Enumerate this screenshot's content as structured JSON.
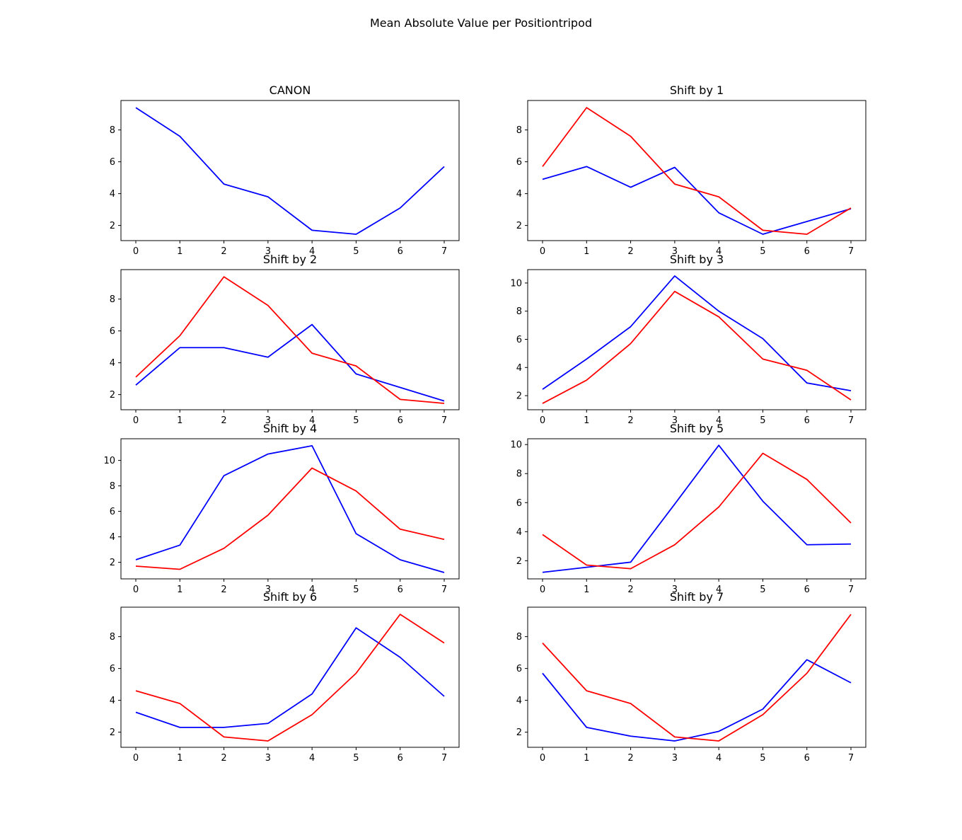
{
  "figure": {
    "title": "Mean Absolute Value per Positiontripod"
  },
  "colors": {
    "blue": "#0000ff",
    "red": "#ff0000"
  },
  "chart_data": [
    {
      "type": "line",
      "title": "CANON",
      "x": [
        0,
        1,
        2,
        3,
        4,
        5,
        6,
        7
      ],
      "xticks": [
        0,
        1,
        2,
        3,
        4,
        5,
        6,
        7
      ],
      "yticks": [
        2,
        4,
        6,
        8
      ],
      "ylim": [
        1.05,
        9.85
      ],
      "series": [
        {
          "color": "#0000ff",
          "values": [
            9.4,
            7.6,
            4.6,
            3.8,
            1.7,
            1.45,
            3.1,
            5.7
          ]
        }
      ]
    },
    {
      "type": "line",
      "title": "Shift by 1",
      "x": [
        0,
        1,
        2,
        3,
        4,
        5,
        6,
        7
      ],
      "xticks": [
        0,
        1,
        2,
        3,
        4,
        5,
        6,
        7
      ],
      "yticks": [
        2,
        4,
        6,
        8
      ],
      "ylim": [
        1.05,
        9.85
      ],
      "series": [
        {
          "color": "#0000ff",
          "values": [
            4.9,
            5.7,
            4.4,
            5.65,
            2.8,
            1.45,
            2.25,
            3.05
          ]
        },
        {
          "color": "#ff0000",
          "values": [
            5.7,
            9.4,
            7.6,
            4.6,
            3.8,
            1.7,
            1.45,
            3.1
          ]
        }
      ]
    },
    {
      "type": "line",
      "title": "Shift by 2",
      "x": [
        0,
        1,
        2,
        3,
        4,
        5,
        6,
        7
      ],
      "xticks": [
        0,
        1,
        2,
        3,
        4,
        5,
        6,
        7
      ],
      "yticks": [
        2,
        4,
        6,
        8
      ],
      "ylim": [
        1.05,
        9.85
      ],
      "series": [
        {
          "color": "#0000ff",
          "values": [
            2.6,
            4.95,
            4.95,
            4.35,
            6.4,
            3.3,
            2.45,
            1.6
          ]
        },
        {
          "color": "#ff0000",
          "values": [
            3.1,
            5.7,
            9.4,
            7.6,
            4.6,
            3.8,
            1.7,
            1.45
          ]
        }
      ]
    },
    {
      "type": "line",
      "title": "Shift by 3",
      "x": [
        0,
        1,
        2,
        3,
        4,
        5,
        6,
        7
      ],
      "xticks": [
        0,
        1,
        2,
        3,
        4,
        5,
        6,
        7
      ],
      "yticks": [
        2,
        4,
        6,
        8,
        10
      ],
      "ylim": [
        1.0,
        10.95
      ],
      "series": [
        {
          "color": "#0000ff",
          "values": [
            2.45,
            4.6,
            6.9,
            10.5,
            8.0,
            6.05,
            2.9,
            2.35
          ]
        },
        {
          "color": "#ff0000",
          "values": [
            1.45,
            3.1,
            5.7,
            9.4,
            7.6,
            4.6,
            3.8,
            1.7
          ]
        }
      ]
    },
    {
      "type": "line",
      "title": "Shift by 4",
      "x": [
        0,
        1,
        2,
        3,
        4,
        5,
        6,
        7
      ],
      "xticks": [
        0,
        1,
        2,
        3,
        4,
        5,
        6,
        7
      ],
      "yticks": [
        2,
        4,
        6,
        8,
        10
      ],
      "ylim": [
        0.7,
        11.7
      ],
      "series": [
        {
          "color": "#0000ff",
          "values": [
            2.2,
            3.35,
            8.8,
            10.5,
            11.15,
            4.25,
            2.2,
            1.2
          ]
        },
        {
          "color": "#ff0000",
          "values": [
            1.7,
            1.45,
            3.1,
            5.7,
            9.4,
            7.6,
            4.6,
            3.8
          ]
        }
      ]
    },
    {
      "type": "line",
      "title": "Shift by 5",
      "x": [
        0,
        1,
        2,
        3,
        4,
        5,
        6,
        7
      ],
      "xticks": [
        0,
        1,
        2,
        3,
        4,
        5,
        6,
        7
      ],
      "yticks": [
        2,
        4,
        6,
        8,
        10
      ],
      "ylim": [
        0.75,
        10.4
      ],
      "series": [
        {
          "color": "#0000ff",
          "values": [
            1.2,
            1.55,
            1.9,
            5.9,
            9.95,
            6.1,
            3.1,
            3.15
          ]
        },
        {
          "color": "#ff0000",
          "values": [
            3.8,
            1.7,
            1.45,
            3.1,
            5.7,
            9.4,
            7.6,
            4.6
          ]
        }
      ]
    },
    {
      "type": "line",
      "title": "Shift by 6",
      "x": [
        0,
        1,
        2,
        3,
        4,
        5,
        6,
        7
      ],
      "xticks": [
        0,
        1,
        2,
        3,
        4,
        5,
        6,
        7
      ],
      "yticks": [
        2,
        4,
        6,
        8
      ],
      "ylim": [
        1.05,
        9.85
      ],
      "series": [
        {
          "color": "#0000ff",
          "values": [
            3.25,
            2.3,
            2.3,
            2.55,
            4.4,
            8.55,
            6.7,
            4.25
          ]
        },
        {
          "color": "#ff0000",
          "values": [
            4.6,
            3.8,
            1.7,
            1.45,
            3.1,
            5.7,
            9.4,
            7.6
          ]
        }
      ]
    },
    {
      "type": "line",
      "title": "Shift by 7",
      "x": [
        0,
        1,
        2,
        3,
        4,
        5,
        6,
        7
      ],
      "xticks": [
        0,
        1,
        2,
        3,
        4,
        5,
        6,
        7
      ],
      "yticks": [
        2,
        4,
        6,
        8
      ],
      "ylim": [
        1.05,
        9.85
      ],
      "series": [
        {
          "color": "#0000ff",
          "values": [
            5.7,
            2.3,
            1.75,
            1.45,
            2.05,
            3.45,
            6.55,
            5.1
          ]
        },
        {
          "color": "#ff0000",
          "values": [
            7.6,
            4.6,
            3.8,
            1.7,
            1.45,
            3.1,
            5.7,
            9.4
          ]
        }
      ]
    }
  ]
}
